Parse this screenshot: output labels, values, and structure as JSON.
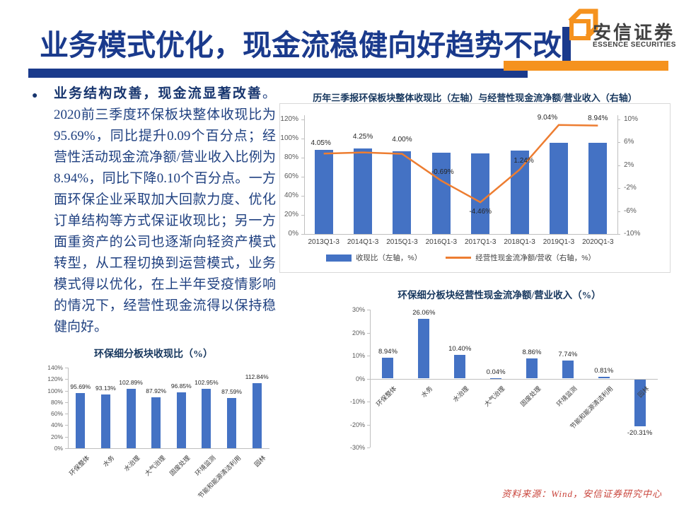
{
  "header": {
    "title": "业务模式优化，现金流稳健向好趋势不改",
    "logo_cn": "安信证券",
    "logo_en": "ESSENCE SECURITIES"
  },
  "body_text": {
    "lead": "业务结构改善，现金流显著改善",
    "rest": "。2020前三季度环保板块整体收现比为95.69%，同比提升0.09个百分点；经营性活动现金流净额/营业收入比例为8.94%，同比下降0.10个百分点。一方面环保企业采取加大回款力度、优化订单结构等方式保证收现比；另一方面重资产的公司也逐渐向轻资产模式转型，从工程切换到运营模式，业务模式得以优化，在上半年受疫情影响的情况下，经营性现金流得以保持稳健向好。"
  },
  "source_note": "资料来源：Wind，安信证券研究中心",
  "colors": {
    "accent_blue": "#1A3A8C",
    "accent_orange": "#F5921E",
    "bar_blue": "#4472C4",
    "line_orange": "#ED7D31",
    "source_red": "#C9453C"
  },
  "chart_data": [
    {
      "id": "combo",
      "type": "bar",
      "subtype": "bar-line-combo",
      "title": "历年三季报环保板块整体收现比（左轴）与经营性现金流净额/营业收入（右轴）",
      "categories": [
        "2013Q1-3",
        "2014Q1-3",
        "2015Q1-3",
        "2016Q1-3",
        "2017Q1-3",
        "2018Q1-3",
        "2019Q1-3",
        "2020Q1-3"
      ],
      "series": [
        {
          "name": "收现比（左轴，%）",
          "type": "bar",
          "axis": "left",
          "color": "#4472C4",
          "values": [
            88,
            89.5,
            87,
            85.5,
            84.5,
            87.5,
            95.6,
            95.69
          ],
          "data_labels": false
        },
        {
          "name": "经营性现金流净额/营收（右轴，%）",
          "type": "line",
          "axis": "right",
          "color": "#ED7D31",
          "values": [
            4.05,
            4.25,
            4.0,
            -0.69,
            -4.46,
            1.24,
            9.04,
            8.94
          ],
          "data_labels": true
        }
      ],
      "left_axis": {
        "min": 0,
        "max": 120,
        "ticks": [
          0,
          20,
          40,
          60,
          80,
          100,
          120
        ],
        "format": "percent"
      },
      "right_axis": {
        "min": -10,
        "max": 10,
        "ticks": [
          -10,
          -6,
          -2,
          2,
          6,
          10
        ],
        "format": "percent"
      },
      "legend_position": "bottom",
      "grid": false
    },
    {
      "id": "segments-operating-cashflow",
      "type": "bar",
      "title": "环保细分板块经营性现金流净额/营业收入（%）",
      "categories": [
        "环保整体",
        "水务",
        "水治理",
        "大气治理",
        "固废处理",
        "环境监测",
        "节能和能源清洁利用",
        "园林"
      ],
      "values": [
        8.94,
        26.06,
        10.4,
        0.04,
        8.86,
        7.74,
        0.81,
        -20.31
      ],
      "bar_color": "#4472C4",
      "y_axis": {
        "min": -30,
        "max": 30,
        "ticks": [
          30,
          20,
          10,
          0,
          -10,
          -20,
          -30
        ],
        "format": "percent"
      },
      "data_labels": true,
      "grid": false
    },
    {
      "id": "segments-cash-ratio",
      "type": "bar",
      "title": "环保细分板块收现比（%）",
      "categories": [
        "环保整体",
        "水务",
        "水治理",
        "大气治理",
        "固废处理",
        "环境监测",
        "节能和能源清洁利用",
        "园林"
      ],
      "values": [
        95.69,
        93.13,
        102.89,
        87.92,
        96.85,
        102.95,
        87.59,
        112.84
      ],
      "bar_color": "#4472C4",
      "y_axis": {
        "min": 0,
        "max": 140,
        "ticks": [
          0,
          20,
          40,
          60,
          80,
          100,
          120,
          140
        ],
        "format": "percent"
      },
      "data_labels": true,
      "grid": false
    }
  ]
}
